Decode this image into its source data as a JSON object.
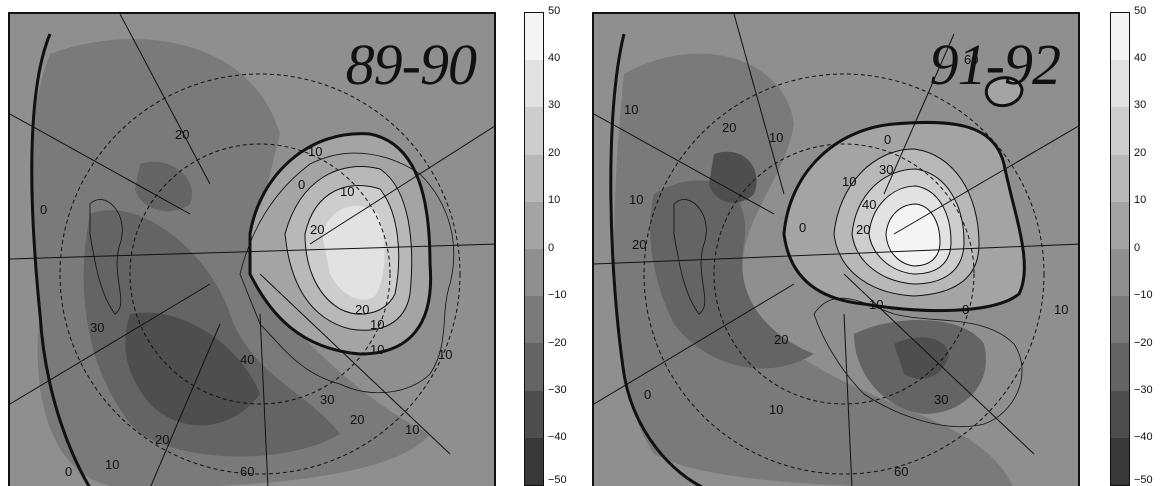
{
  "panels": [
    {
      "period_label": "89-90",
      "contour_labels": [
        "89-90",
        "20",
        "10",
        "10",
        "20",
        "10",
        "20",
        "10",
        "0",
        "0",
        "40",
        "30",
        "20",
        "20",
        "30",
        "60",
        "10",
        "0",
        "10",
        "10"
      ],
      "colorbar": {
        "ticks": [
          "50",
          "40",
          "30",
          "20",
          "10",
          "0",
          "−10",
          "−20",
          "−30",
          "−40",
          "−50"
        ]
      }
    },
    {
      "period_label": "91-92",
      "contour_labels": [
        "60",
        "20",
        "10",
        "10",
        "0",
        "10",
        "30",
        "40",
        "20",
        "10",
        "0",
        "0",
        "20",
        "30",
        "10",
        "10",
        "20",
        "60",
        "0",
        "10"
      ],
      "colorbar": {
        "ticks": [
          "50",
          "40",
          "30",
          "20",
          "10",
          "0",
          "−10",
          "−20",
          "−30",
          "−40",
          "−50"
        ]
      }
    }
  ],
  "colors": {
    "level_50_40": "#f4f4f4",
    "level_40_30": "#e2e2e2",
    "level_30_20": "#cdcdcd",
    "level_20_10": "#b8b8b8",
    "level_10_0": "#a4a4a4",
    "level_0_m10": "#8f8f8f",
    "level_m10_m20": "#7a7a7a",
    "level_m20_m30": "#646464",
    "level_m30_m40": "#4e4e4e",
    "level_m40_m50": "#383838",
    "contour": "#111111"
  }
}
